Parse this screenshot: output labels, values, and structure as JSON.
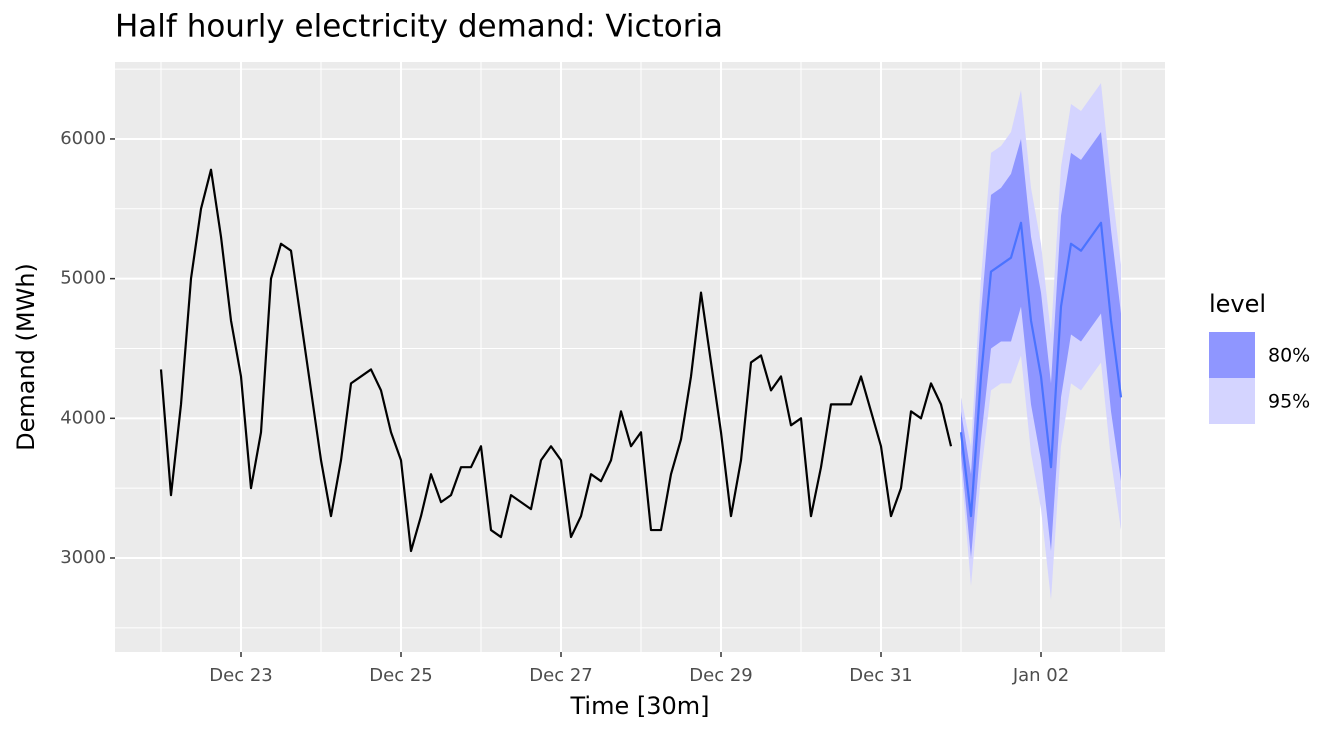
{
  "chart_data": {
    "type": "forecast",
    "title": "Half hourly electricity demand: Victoria",
    "xlabel": "Time [30m]",
    "ylabel": "Demand (MWh)",
    "xlim": [
      21.425,
      34.55
    ],
    "ylim": [
      2327,
      6551
    ],
    "xticks": [
      {
        "value": 23,
        "label": "Dec 23"
      },
      {
        "value": 25,
        "label": "Dec 25"
      },
      {
        "value": 27,
        "label": "Dec 27"
      },
      {
        "value": 29,
        "label": "Dec 29"
      },
      {
        "value": 31,
        "label": "Dec 31"
      },
      {
        "value": 33,
        "label": "Jan 02"
      }
    ],
    "yticks": [
      3000,
      4000,
      5000,
      6000
    ],
    "grid": true,
    "legend_title": "level",
    "legend_position": "right",
    "history": {
      "color": "#000000",
      "x": [
        22,
        22.125,
        22.25,
        22.375,
        22.5,
        22.625,
        22.75,
        22.875,
        23,
        23.125,
        23.25,
        23.375,
        23.5,
        23.625,
        23.75,
        23.875,
        24,
        24.125,
        24.25,
        24.375,
        24.5,
        24.625,
        24.75,
        24.875,
        25,
        25.125,
        25.25,
        25.375,
        25.5,
        25.625,
        25.75,
        25.875,
        26,
        26.125,
        26.25,
        26.375,
        26.5,
        26.625,
        26.75,
        26.875,
        27,
        27.125,
        27.25,
        27.375,
        27.5,
        27.625,
        27.75,
        27.875,
        28,
        28.125,
        28.25,
        28.375,
        28.5,
        28.625,
        28.75,
        28.875,
        29,
        29.125,
        29.25,
        29.375,
        29.5,
        29.625,
        29.75,
        29.875,
        30,
        30.125,
        30.25,
        30.375,
        30.5,
        30.625,
        30.75,
        30.875,
        31,
        31.125,
        31.25,
        31.375,
        31.5,
        31.625,
        31.75,
        31.875
      ],
      "values": [
        4350,
        3450,
        4100,
        5000,
        5500,
        5780,
        5300,
        4700,
        4300,
        3500,
        3900,
        5000,
        5250,
        5200,
        4700,
        4200,
        3700,
        3300,
        3700,
        4250,
        4300,
        4350,
        4200,
        3900,
        3700,
        3050,
        3300,
        3600,
        3400,
        3450,
        3650,
        3650,
        3800,
        3200,
        3150,
        3450,
        3400,
        3350,
        3700,
        3800,
        3700,
        3150,
        3300,
        3600,
        3550,
        3700,
        4050,
        3800,
        3900,
        3200,
        3200,
        3600,
        3850,
        4300,
        4900,
        4400,
        3900,
        3300,
        3700,
        4400,
        4450,
        4200,
        4300,
        3950,
        4000,
        3300,
        3650,
        4100,
        4100,
        4100,
        4300,
        4050,
        3800,
        3300,
        3500,
        4050,
        4000,
        4250,
        4100,
        3800
      ]
    },
    "forecast": {
      "color": "#4b73ff",
      "x": [
        32,
        32.125,
        32.25,
        32.375,
        32.5,
        32.625,
        32.75,
        32.875,
        33,
        33.125,
        33.25,
        33.375,
        33.5,
        33.625,
        33.75,
        33.875,
        34
      ],
      "mean": [
        3900,
        3300,
        4300,
        5050,
        5100,
        5150,
        5400,
        4700,
        4300,
        3650,
        4800,
        5250,
        5200,
        5300,
        5400,
        4700,
        4150
      ],
      "intervals": [
        {
          "level": "80%",
          "color": "#8f96ff",
          "lower": [
            3750,
            3000,
            3850,
            4500,
            4550,
            4550,
            4800,
            4100,
            3700,
            3050,
            4150,
            4600,
            4550,
            4650,
            4750,
            4050,
            3550
          ],
          "upper": [
            4050,
            3600,
            4750,
            5600,
            5650,
            5750,
            6000,
            5300,
            4900,
            4250,
            5450,
            5900,
            5850,
            5950,
            6050,
            5350,
            4750
          ]
        },
        {
          "level": "95%",
          "color": "#d4d4ff",
          "lower": [
            3650,
            2800,
            3600,
            4200,
            4250,
            4250,
            4450,
            3750,
            3350,
            2700,
            3800,
            4250,
            4200,
            4300,
            4400,
            3700,
            3200
          ],
          "upper": [
            4150,
            3800,
            5000,
            5900,
            5950,
            6050,
            6350,
            5650,
            5250,
            4600,
            5800,
            6250,
            6200,
            6300,
            6400,
            5700,
            5100
          ]
        }
      ]
    }
  }
}
